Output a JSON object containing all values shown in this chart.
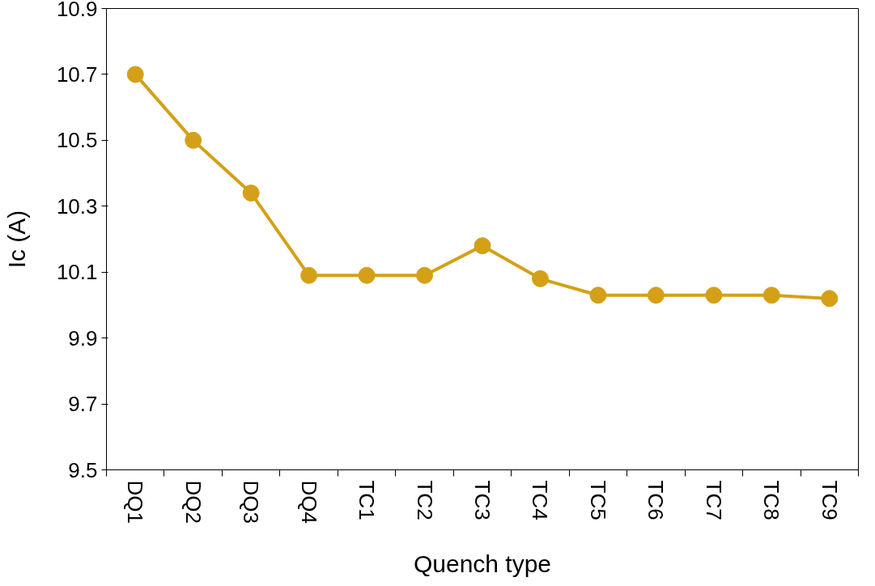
{
  "chart_data": {
    "type": "line",
    "xlabel": "Quench type",
    "ylabel": "Ic (A)",
    "categories": [
      "DQ1",
      "DQ2",
      "DQ3",
      "DQ4",
      "TC1",
      "TC2",
      "TC3",
      "TC4",
      "TC5",
      "TC6",
      "TC7",
      "TC8",
      "TC9"
    ],
    "series": [
      {
        "color": "#d4a017",
        "values": [
          10.7,
          10.5,
          10.34,
          10.09,
          10.09,
          10.09,
          10.18,
          10.08,
          10.03,
          10.03,
          10.03,
          10.03,
          10.02
        ]
      }
    ],
    "ylim": [
      9.5,
      10.9
    ],
    "yticks": [
      9.5,
      9.7,
      9.9,
      10.1,
      10.3,
      10.5,
      10.7,
      10.9
    ],
    "marker": "circle",
    "line_style": "solid",
    "grid": false
  }
}
